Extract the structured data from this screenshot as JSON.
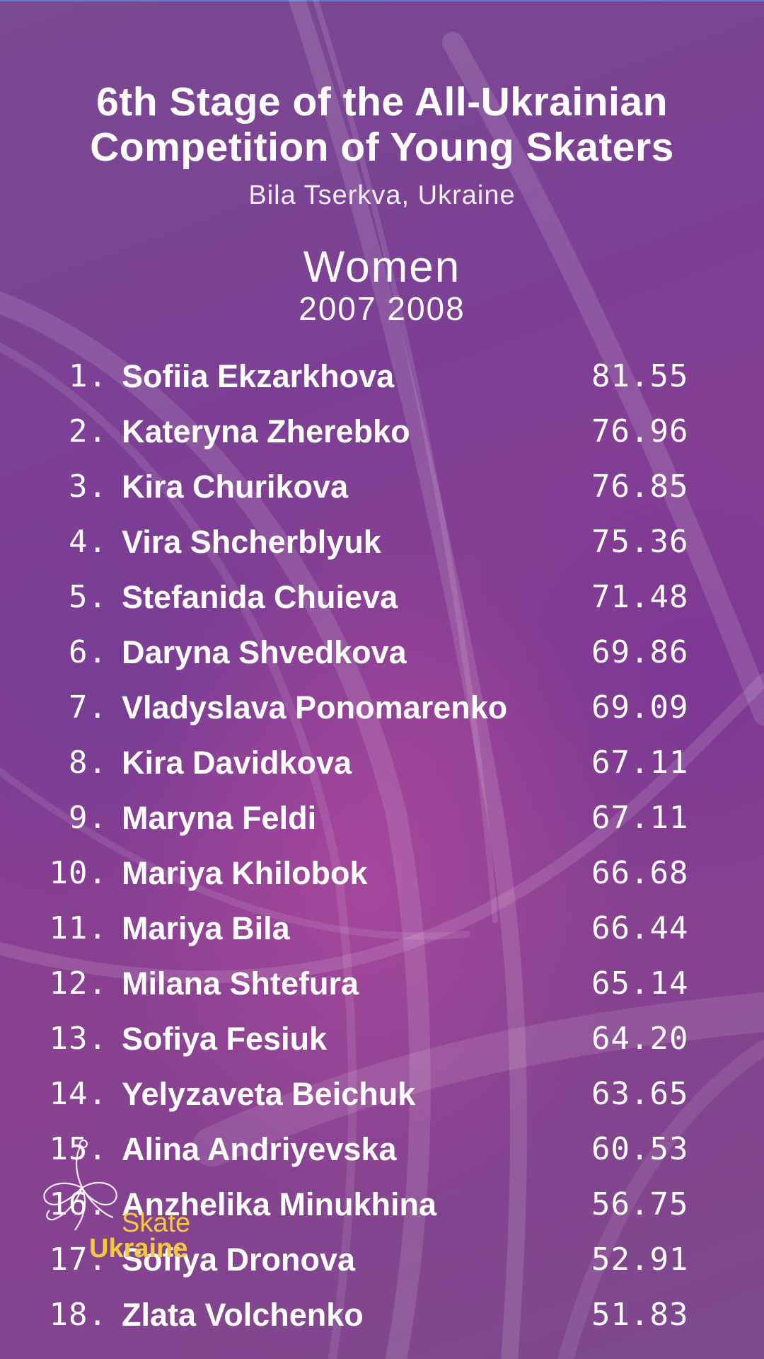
{
  "header": {
    "title_line1": "6th Stage of the All-Ukrainian",
    "title_line2": "Competition of Young Skaters",
    "location": "Bila Tserkva, Ukraine",
    "category": "Women",
    "ages": "2007 2008"
  },
  "results": [
    {
      "rank": "1.",
      "name": "Sofiia Ekzarkhova",
      "score": "81.55"
    },
    {
      "rank": "2.",
      "name": "Kateryna Zherebko",
      "score": "76.96"
    },
    {
      "rank": "3.",
      "name": "Kira Churikova",
      "score": "76.85"
    },
    {
      "rank": "4.",
      "name": "Vira Shcherblyuk",
      "score": "75.36"
    },
    {
      "rank": "5.",
      "name": "Stefanida Chuieva",
      "score": "71.48"
    },
    {
      "rank": "6.",
      "name": "Daryna Shvedkova",
      "score": "69.86"
    },
    {
      "rank": "7.",
      "name": "Vladyslava Ponomarenko",
      "score": "69.09"
    },
    {
      "rank": "8.",
      "name": "Kira Davidkova",
      "score": "67.11"
    },
    {
      "rank": "9.",
      "name": "Maryna Feldi",
      "score": "67.11"
    },
    {
      "rank": "10.",
      "name": "Mariya Khilobok",
      "score": "66.68"
    },
    {
      "rank": "11.",
      "name": "Mariya Bila",
      "score": "66.44"
    },
    {
      "rank": "12.",
      "name": "Milana Shtefura",
      "score": "65.14"
    },
    {
      "rank": "13.",
      "name": "Sofiya Fesiuk",
      "score": "64.20"
    },
    {
      "rank": "14.",
      "name": "Yelyzaveta Beichuk",
      "score": "63.65"
    },
    {
      "rank": "15.",
      "name": "Alina Andriyevska",
      "score": "60.53"
    },
    {
      "rank": "16.",
      "name": "Anzhelika Minukhina",
      "score": "56.75"
    },
    {
      "rank": "17.",
      "name": "Sofiya Dronova",
      "score": "52.91"
    },
    {
      "rank": "18.",
      "name": "Zlata Volchenko",
      "score": "51.83"
    }
  ],
  "logo": {
    "line1": "Skate",
    "line2": "Ukraine",
    "color": "#f5c93c",
    "icon": "figure-skater-outline-icon"
  },
  "colors": {
    "background": "#7c3f95",
    "text": "#ffffff",
    "accent_line": "#5a7fd6"
  }
}
